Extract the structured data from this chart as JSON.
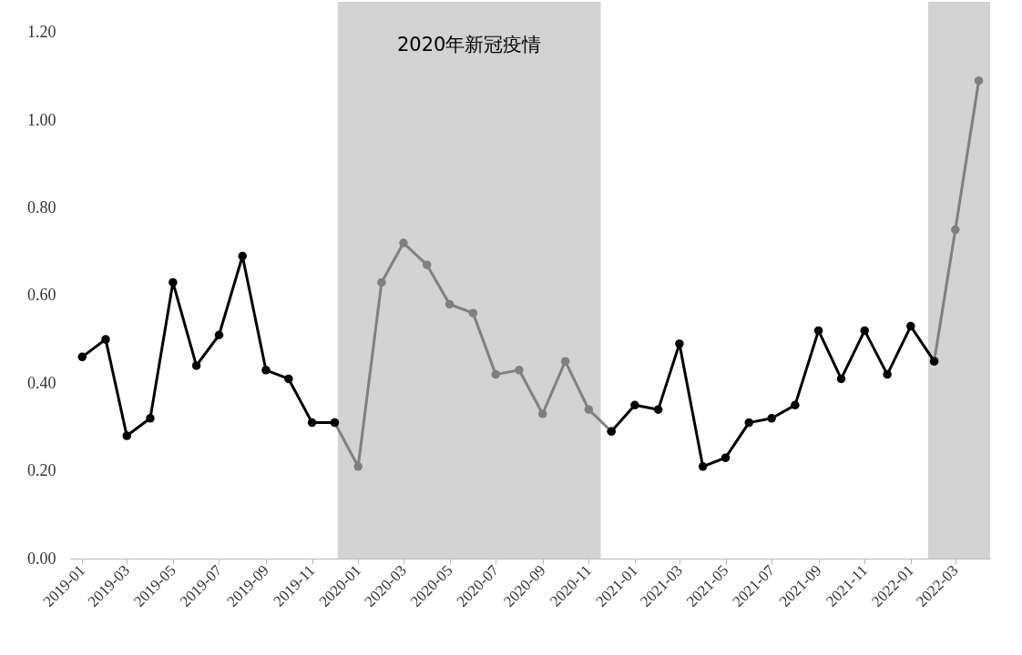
{
  "chart_data": {
    "type": "line",
    "x": [
      "2019-01",
      "2019-02",
      "2019-03",
      "2019-04",
      "2019-05",
      "2019-06",
      "2019-07",
      "2019-08",
      "2019-09",
      "2019-10",
      "2019-11",
      "2019-12",
      "2020-01",
      "2020-02",
      "2020-03",
      "2020-04",
      "2020-05",
      "2020-06",
      "2020-07",
      "2020-08",
      "2020-09",
      "2020-10",
      "2020-11",
      "2020-12",
      "2021-01",
      "2021-02",
      "2021-03",
      "2021-04",
      "2021-05",
      "2021-06",
      "2021-07",
      "2021-08",
      "2021-09",
      "2021-10",
      "2021-11",
      "2021-12",
      "2022-01",
      "2022-02",
      "2022-03",
      "2022-04"
    ],
    "series": [
      {
        "color": "#808080",
        "values": [
          null,
          null,
          null,
          null,
          null,
          null,
          null,
          null,
          null,
          null,
          null,
          0.31,
          0.21,
          0.63,
          0.72,
          0.67,
          0.58,
          0.56,
          0.42,
          0.43,
          0.33,
          0.45,
          0.34,
          0.29,
          null,
          null,
          null,
          null,
          null,
          null,
          null,
          null,
          null,
          null,
          null,
          null,
          null,
          0.45,
          0.75,
          1.09
        ]
      },
      {
        "color": "#000000",
        "values": [
          0.46,
          0.5,
          0.28,
          0.32,
          0.63,
          0.44,
          0.51,
          0.69,
          0.43,
          0.41,
          0.31,
          0.31,
          null,
          null,
          null,
          null,
          null,
          null,
          null,
          null,
          null,
          null,
          null,
          0.29,
          0.35,
          0.34,
          0.49,
          0.21,
          0.23,
          0.31,
          0.32,
          0.35,
          0.52,
          0.41,
          0.52,
          0.42,
          0.53,
          0.45,
          null,
          null
        ]
      }
    ],
    "xlim": [
      "2018-12-16",
      "2022-04-16"
    ],
    "xticks": [
      "2019-01",
      "2019-03",
      "2019-05",
      "2019-07",
      "2019-09",
      "2019-11",
      "2020-01",
      "2020-03",
      "2020-05",
      "2020-07",
      "2020-09",
      "2020-11",
      "2021-01",
      "2021-03",
      "2021-05",
      "2021-07",
      "2021-09",
      "2021-11",
      "2022-01",
      "2022-03"
    ],
    "ylim": [
      0,
      1.27
    ],
    "yticks": [
      {
        "value": 0,
        "label": "0.00"
      },
      {
        "value": 0.2,
        "label": "0.20"
      },
      {
        "value": 0.4,
        "label": "0.40"
      },
      {
        "value": 0.6,
        "label": "0.60"
      },
      {
        "value": 0.8,
        "label": "0.80"
      },
      {
        "value": 1,
        "label": "1.00"
      },
      {
        "value": 1.2,
        "label": "1.20"
      }
    ],
    "bands": [
      {
        "axis": "x",
        "from": "2019-12-05",
        "to": "2020-11-17",
        "label": "2020年新冠疫情",
        "color": "#d3d3d3"
      },
      {
        "axis": "x",
        "from": "2022-01-24",
        "to": "2022-04-16",
        "color": "#d3d3d3"
      }
    ],
    "marker": "circle",
    "line_style": "solid",
    "grid": false
  }
}
